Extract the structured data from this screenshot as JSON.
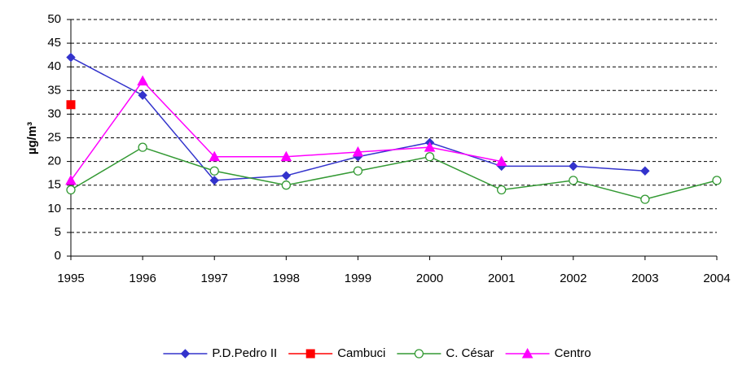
{
  "chart_data": {
    "type": "line",
    "y_label": "µg/m³",
    "categories": [
      "1995",
      "1996",
      "1997",
      "1998",
      "1999",
      "2000",
      "2001",
      "2002",
      "2003",
      "2004"
    ],
    "series": [
      {
        "name": "P.D.Pedro II",
        "color": "#3333cc",
        "marker": "diamond",
        "values": [
          42,
          34,
          16,
          17,
          21,
          24,
          19,
          19,
          18,
          null
        ]
      },
      {
        "name": "Cambuci",
        "color": "#ff0000",
        "marker": "square",
        "values": [
          32,
          null,
          null,
          null,
          null,
          null,
          null,
          null,
          null,
          null
        ]
      },
      {
        "name": "C. César",
        "color": "#339933",
        "marker": "circle",
        "values": [
          14,
          23,
          18,
          15,
          18,
          21,
          14,
          16,
          12,
          16
        ]
      },
      {
        "name": "Centro",
        "color": "#ff00ff",
        "marker": "triangle",
        "values": [
          16,
          37,
          21,
          21,
          22,
          23,
          20,
          null,
          null,
          null
        ]
      }
    ],
    "ylim": [
      0,
      50
    ],
    "yticks": [
      0,
      5,
      10,
      15,
      20,
      25,
      30,
      35,
      40,
      45,
      50
    ],
    "grid": true,
    "legend": "bottom"
  }
}
